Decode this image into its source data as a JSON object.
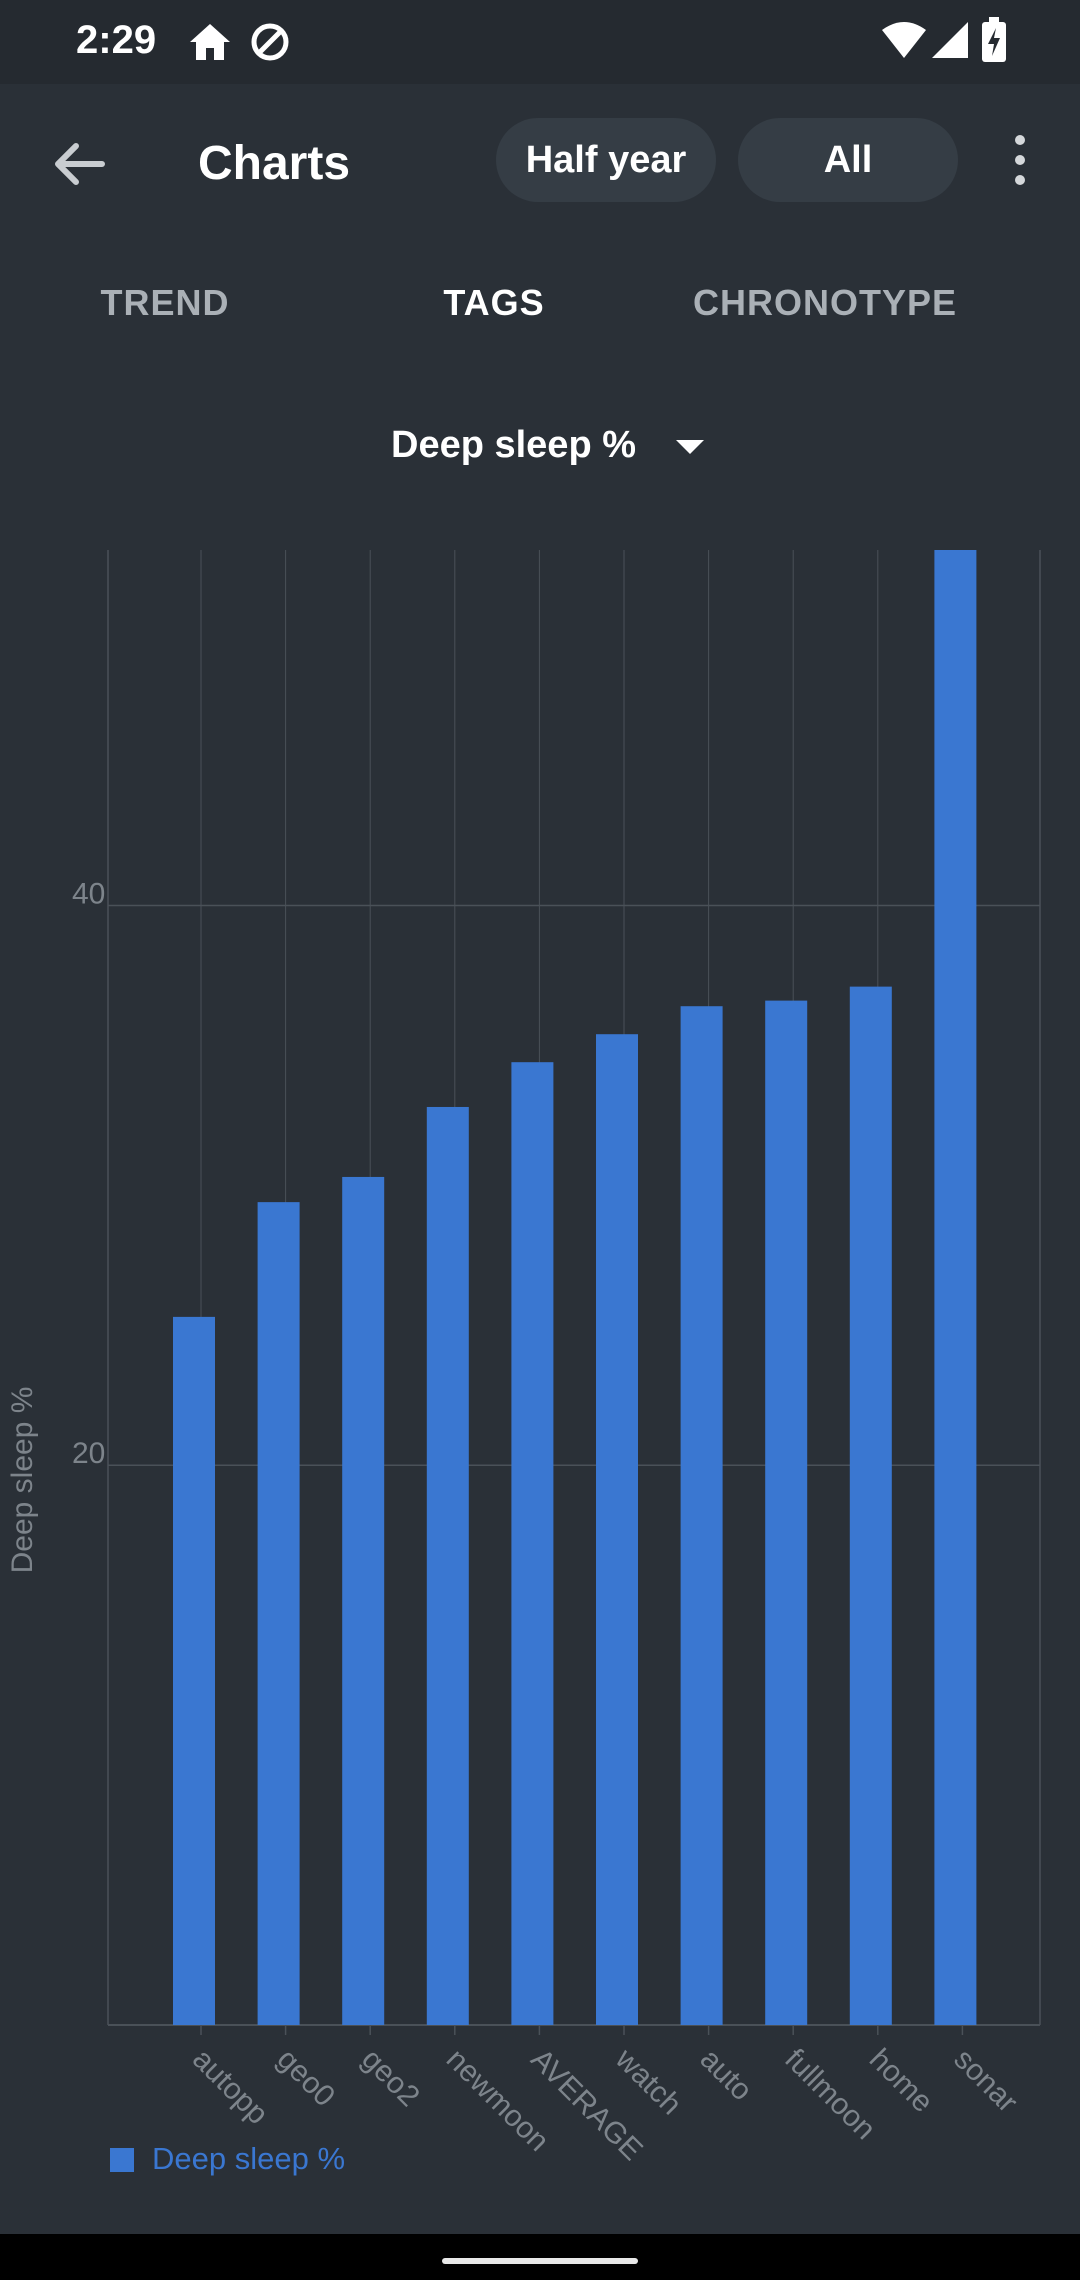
{
  "status_bar": {
    "time": "2:29"
  },
  "app_bar": {
    "title": "Charts",
    "period_button": "Half year",
    "filter_button": "All"
  },
  "tabs": [
    {
      "label": "TREND",
      "active": false
    },
    {
      "label": "TAGS",
      "active": true
    },
    {
      "label": "CHRONOTYPE",
      "active": false
    }
  ],
  "metric_selector": {
    "selected": "Deep sleep %"
  },
  "colors": {
    "accent": "#3a77d1",
    "background": "#2a3037",
    "grid": "#4a5158"
  },
  "chart_data": {
    "type": "bar",
    "categories": [
      "autopp",
      "geo0",
      "geo2",
      "newmoon",
      "AVERAGE",
      "watch",
      "auto",
      "fullmoon",
      "home",
      "sonar"
    ],
    "series": [
      {
        "name": "Deep sleep %",
        "values": [
          25.3,
          29.4,
          30.3,
          32.8,
          34.4,
          35.4,
          36.4,
          36.6,
          37.1,
          52.7
        ]
      }
    ],
    "xlabel": "",
    "ylabel": "Deep sleep %",
    "ylim": [
      0,
      52.7
    ],
    "yticks": [
      20,
      40
    ],
    "grid": true,
    "legend": "bottom-left"
  }
}
